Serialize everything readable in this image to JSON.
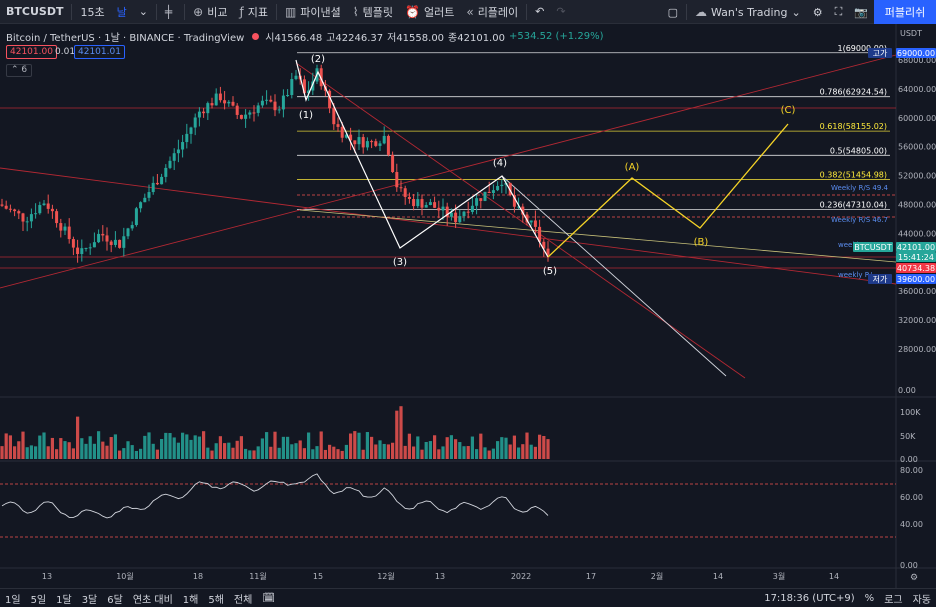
{
  "toolbar": {
    "symbol": "BTCUSDT",
    "interval_minutes": "15초",
    "interval_day": "날",
    "compare": "비교",
    "indicators": "지표",
    "financials": "파이낸셜",
    "templates": "템플릿",
    "alert": "얼러트",
    "replay": "리플레이",
    "layout_name": "Wan's Trading",
    "publish": "퍼블리쉬"
  },
  "legend": {
    "title": "Bitcoin / TetherUS · 1날 · BINANCE · TradingView",
    "open": "시41566.48",
    "high": "고42246.37",
    "low": "저41558.00",
    "close": "종42101.00",
    "change": "+534.52 (+1.29%)",
    "bid": "42101.00",
    "spread": "0.01",
    "ask": "42101.01",
    "indicator_count": "6"
  },
  "price_axis": {
    "unit": "USDT",
    "ticks": [
      "68000.00",
      "64000.00",
      "60000.00",
      "56000.00",
      "52000.00",
      "48000.00",
      "44000.00",
      "36000.00",
      "32000.00",
      "28000.00",
      "0.00"
    ],
    "high_label": "고가",
    "high_value": "69000.00",
    "symbol_tag": "BTCUSDT",
    "last_price": "42101.00",
    "countdown": "15:41:24",
    "level_price": "40734.38",
    "low_label": "저가",
    "low_value": "39600.00"
  },
  "volume_axis": {
    "ticks": [
      "100K",
      "50K",
      "0.00"
    ]
  },
  "rsi_axis": {
    "ticks": [
      "80.00",
      "60.00",
      "40.00",
      "0.00"
    ]
  },
  "time_axis": {
    "labels": [
      "13",
      "10월",
      "18",
      "11월",
      "15",
      "12월",
      "13",
      "2022",
      "17",
      "2월",
      "14",
      "3월",
      "14"
    ]
  },
  "fib_levels": [
    {
      "label": "1(69000.00)",
      "value": 69000,
      "color": "#ffffff"
    },
    {
      "label": "0.786(62924.54)",
      "value": 62924.54,
      "color": "#ffffff"
    },
    {
      "label": "0.618(58155.02)",
      "value": 58155.02,
      "color": "#ffeb3b"
    },
    {
      "label": "0.5(54805.00)",
      "value": 54805.0,
      "color": "#ffffff"
    },
    {
      "label": "0.382(51454.98)",
      "value": 51454.98,
      "color": "#ffeb3b"
    },
    {
      "label": "0.236(47310.04)",
      "value": 47310.04,
      "color": "#ffffff"
    }
  ],
  "weekly_labels": [
    "Weekly R/S 49.4",
    "Weekly R/S 46.7",
    "weekl",
    "weekly R/"
  ],
  "wave_labels": [
    "(1)",
    "(2)",
    "(3)",
    "(4)",
    "(5)"
  ],
  "projection_labels": [
    "(A)",
    "(B)",
    "(C)"
  ],
  "bottom_bar": {
    "ranges": [
      "1일",
      "5일",
      "1달",
      "3달",
      "6달",
      "연초 대비",
      "1해",
      "5해",
      "전체"
    ],
    "time": "17:18:36 (UTC+9)",
    "percent": "%",
    "log": "로그",
    "auto": "자동"
  },
  "colors": {
    "background": "#131722",
    "up": "#26a69a",
    "down": "#ef5350",
    "fib_yellow": "#ffeb3b",
    "accent": "#2962ff",
    "projection": "#f5d327"
  }
}
